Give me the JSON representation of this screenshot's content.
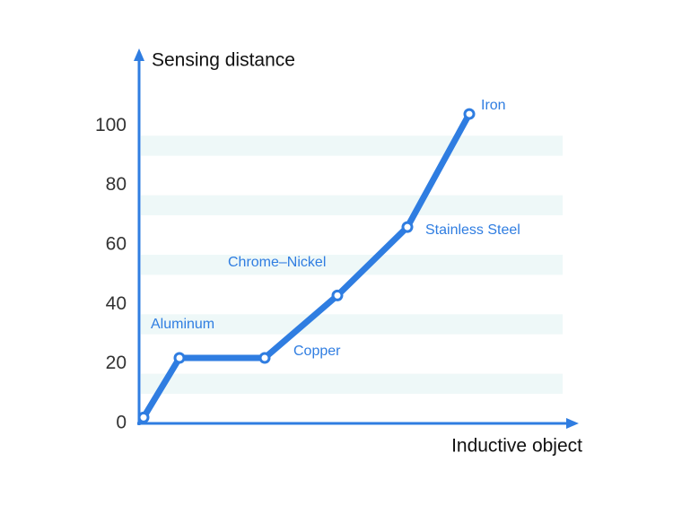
{
  "chart_data": {
    "type": "line",
    "y_label": "Sensing distance",
    "x_label": "Inductive object",
    "categories": [
      null,
      "Aluminum",
      "Copper",
      "Chrome–Nickel",
      "Stainless Steel",
      "Iron"
    ],
    "values": [
      2,
      22,
      22,
      43,
      66,
      104
    ],
    "color": "#2f7de1",
    "ylim": [
      0,
      120
    ],
    "yticks": [
      0,
      20,
      40,
      60,
      80,
      100
    ],
    "grid": true
  }
}
